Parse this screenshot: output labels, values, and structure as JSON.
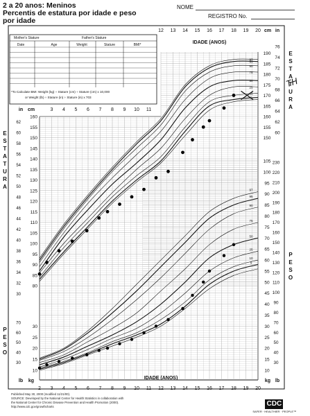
{
  "header": {
    "title_line1": "2 a 20 anos: Meninos",
    "title_line2": "Percentis de estatura por idade e peso",
    "title_line3": "por idade",
    "nome_label": "NOME",
    "registro_label": "REGISTRO No."
  },
  "table": {
    "mother_stature": "Mother's Stature",
    "father_stature": "Father's Stature",
    "columns": [
      "Date",
      "Age",
      "Weight",
      "Stature",
      "BMI*"
    ],
    "bmi_note_1": "*To Calculate BMI: Weight (kg) ÷ Stature (cm) ÷ Stature (cm) x 10,000",
    "bmi_note_2": "or Weight (lb) ÷ Stature (in) ÷ Stature (in) x 703"
  },
  "labels": {
    "estatura_left": "ESTATURA",
    "estatura_right": "ESTATURA",
    "peso_left": "PESO",
    "peso_right": "PESO",
    "idade_top": "IDADE (ANOS)",
    "idade_bottom": "IDADE (ANOS)",
    "in": "in",
    "cm": "cm",
    "lb": "lb",
    "kg": "kg",
    "handwritten": "TH"
  },
  "footer": {
    "line1": "Published May 30, 2000 (modified 11/21/00).",
    "line2": "SOURCE: Developed by the National Center for Health Statistics in collaboration with",
    "line3": "the National Center for Chronic Disease Prevention and Health Promotion (2000).",
    "line4": "http://www.cdc.gov/growthcharts",
    "logo": "CDC",
    "tagline": "SAFER · HEALTHIER · PEOPLE™"
  },
  "colors": {
    "ink": "#111111",
    "grid": "#9a9a9a",
    "dot": "#000000"
  },
  "chart_data": {
    "type": "scatter",
    "title": "2 a 20 anos: Meninos — Percentis de estatura por idade e peso por idade",
    "xlabel": "IDADE (ANOS)",
    "x_ticks": [
      2,
      3,
      4,
      5,
      6,
      7,
      8,
      9,
      10,
      11,
      12,
      13,
      14,
      15,
      16,
      17,
      18,
      19,
      20
    ],
    "xlim": [
      2,
      20
    ],
    "stature_cm_ticks": [
      80,
      85,
      90,
      95,
      100,
      105,
      110,
      115,
      120,
      125,
      130,
      135,
      140,
      145,
      150,
      155,
      160
    ],
    "stature_cm_right_ticks": [
      150,
      155,
      160,
      165,
      170,
      175,
      180,
      185,
      190
    ],
    "stature_in_left_ticks": [
      30,
      32,
      34,
      36,
      38,
      40,
      42,
      44,
      46,
      48,
      50,
      52,
      54,
      56,
      58,
      60,
      62
    ],
    "stature_in_right_ticks": [
      60,
      62,
      64,
      66,
      68,
      70,
      72,
      74,
      76
    ],
    "weight_kg_right_ticks": [
      10,
      15,
      20,
      25,
      30,
      35,
      40,
      45,
      50,
      55,
      60,
      65,
      70,
      75,
      80,
      85,
      90,
      95,
      100,
      105
    ],
    "weight_lb_right_ticks": [
      30,
      40,
      50,
      60,
      70,
      80,
      90,
      100,
      110,
      120,
      130,
      140,
      150,
      160,
      170,
      180,
      190,
      200,
      210,
      220,
      230
    ],
    "weight_kg_left_ticks": [
      10,
      15,
      20,
      25,
      30
    ],
    "weight_lb_left_ticks": [
      30,
      40,
      50,
      60,
      70
    ],
    "percentile_labels": [
      "5",
      "10",
      "25",
      "50",
      "75",
      "90",
      "95",
      "97"
    ],
    "stature_percentiles": [
      {
        "name": "3",
        "x": [
          2,
          4,
          6,
          8,
          10,
          12,
          14,
          16,
          18,
          20
        ],
        "y": [
          82,
          95,
          107,
          119,
          129,
          138,
          151,
          163,
          167,
          168
        ]
      },
      {
        "name": "5",
        "x": [
          2,
          4,
          6,
          8,
          10,
          12,
          14,
          16,
          18,
          20
        ],
        "y": [
          83,
          96,
          108,
          120,
          130,
          139,
          153,
          165,
          168,
          169
        ]
      },
      {
        "name": "10",
        "x": [
          2,
          4,
          6,
          8,
          10,
          12,
          14,
          16,
          18,
          20
        ],
        "y": [
          84,
          98,
          110,
          122,
          132,
          141,
          155,
          167,
          170,
          171
        ]
      },
      {
        "name": "25",
        "x": [
          2,
          4,
          6,
          8,
          10,
          12,
          14,
          16,
          18,
          20
        ],
        "y": [
          86,
          100,
          112,
          124,
          135,
          145,
          159,
          170,
          174,
          174
        ]
      },
      {
        "name": "50",
        "x": [
          2,
          4,
          6,
          8,
          10,
          12,
          14,
          16,
          18,
          20
        ],
        "y": [
          87,
          103,
          116,
          128,
          138,
          149,
          164,
          174,
          177,
          177
        ]
      },
      {
        "name": "75",
        "x": [
          2,
          4,
          6,
          8,
          10,
          12,
          14,
          16,
          18,
          20
        ],
        "y": [
          89,
          105,
          119,
          131,
          142,
          153,
          168,
          178,
          181,
          181
        ]
      },
      {
        "name": "90",
        "x": [
          2,
          4,
          6,
          8,
          10,
          12,
          14,
          16,
          18,
          20
        ],
        "y": [
          91,
          107,
          121,
          134,
          145,
          156,
          172,
          181,
          184,
          184
        ]
      },
      {
        "name": "95",
        "x": [
          2,
          4,
          6,
          8,
          10,
          12,
          14,
          16,
          18,
          20
        ],
        "y": [
          92,
          108,
          122,
          135,
          147,
          158,
          174,
          183,
          186,
          186
        ]
      },
      {
        "name": "97",
        "x": [
          2,
          4,
          6,
          8,
          10,
          12,
          14,
          16,
          18,
          20
        ],
        "y": [
          93,
          109,
          123,
          136,
          148,
          159,
          175,
          184,
          187,
          187
        ]
      }
    ],
    "weight_percentiles": [
      {
        "name": "3",
        "x": [
          2,
          4,
          6,
          8,
          10,
          12,
          14,
          16,
          18,
          20
        ],
        "y": [
          10,
          13,
          17,
          21,
          25,
          30,
          38,
          47,
          53,
          56
        ]
      },
      {
        "name": "5",
        "x": [
          2,
          4,
          6,
          8,
          10,
          12,
          14,
          16,
          18,
          20
        ],
        "y": [
          10.5,
          13.5,
          17.5,
          22,
          26,
          31,
          39,
          49,
          55,
          58
        ]
      },
      {
        "name": "10",
        "x": [
          2,
          4,
          6,
          8,
          10,
          12,
          14,
          16,
          18,
          20
        ],
        "y": [
          11,
          14,
          18,
          23,
          27,
          33,
          41,
          51,
          57,
          60
        ]
      },
      {
        "name": "25",
        "x": [
          2,
          4,
          6,
          8,
          10,
          12,
          14,
          16,
          18,
          20
        ],
        "y": [
          11.5,
          15,
          19.5,
          24.5,
          29,
          36,
          45,
          55,
          61,
          64
        ]
      },
      {
        "name": "50",
        "x": [
          2,
          4,
          6,
          8,
          10,
          12,
          14,
          16,
          18,
          20
        ],
        "y": [
          12.5,
          16,
          21,
          26,
          32,
          40,
          50,
          61,
          67,
          70
        ]
      },
      {
        "name": "75",
        "x": [
          2,
          4,
          6,
          8,
          10,
          12,
          14,
          16,
          18,
          20
        ],
        "y": [
          13.5,
          17,
          23,
          29,
          36,
          46,
          56,
          67,
          74,
          77
        ]
      },
      {
        "name": "90",
        "x": [
          2,
          4,
          6,
          8,
          10,
          12,
          14,
          16,
          18,
          20
        ],
        "y": [
          14.5,
          18.5,
          25,
          33,
          42,
          52,
          63,
          74,
          81,
          84
        ]
      },
      {
        "name": "95",
        "x": [
          2,
          4,
          6,
          8,
          10,
          12,
          14,
          16,
          18,
          20
        ],
        "y": [
          15,
          19.5,
          27,
          36,
          46,
          57,
          68,
          79,
          85,
          88
        ]
      },
      {
        "name": "97",
        "x": [
          2,
          4,
          6,
          8,
          10,
          12,
          14,
          16,
          18,
          20
        ],
        "y": [
          15.5,
          20,
          28,
          38,
          49,
          60,
          71,
          82,
          88,
          91
        ]
      }
    ],
    "stature_points": {
      "name": "Estatura",
      "x": [
        2.0,
        2.6,
        3.6,
        4.7,
        5.9,
        6.9,
        7.6,
        8.6,
        9.6,
        10.6,
        11.6,
        12.6,
        13.8,
        14.6,
        15.5,
        16.0,
        17.2,
        18.0
      ],
      "y": [
        85.5,
        91,
        96.5,
        101,
        106,
        112,
        115,
        118.5,
        122,
        125.5,
        131,
        134,
        143,
        149,
        155,
        158,
        164,
        170
      ]
    },
    "weight_points": {
      "name": "Peso",
      "x": [
        2.0,
        2.6,
        3.6,
        4.7,
        5.9,
        6.9,
        7.6,
        8.6,
        9.6,
        10.6,
        11.6,
        12.6,
        13.8,
        14.6,
        15.5,
        16.0,
        17.2,
        18.0
      ],
      "y": [
        11,
        12.5,
        14,
        15.5,
        17,
        19,
        20,
        22,
        24,
        27,
        30,
        33,
        38,
        44,
        50,
        55,
        62,
        67
      ]
    }
  }
}
